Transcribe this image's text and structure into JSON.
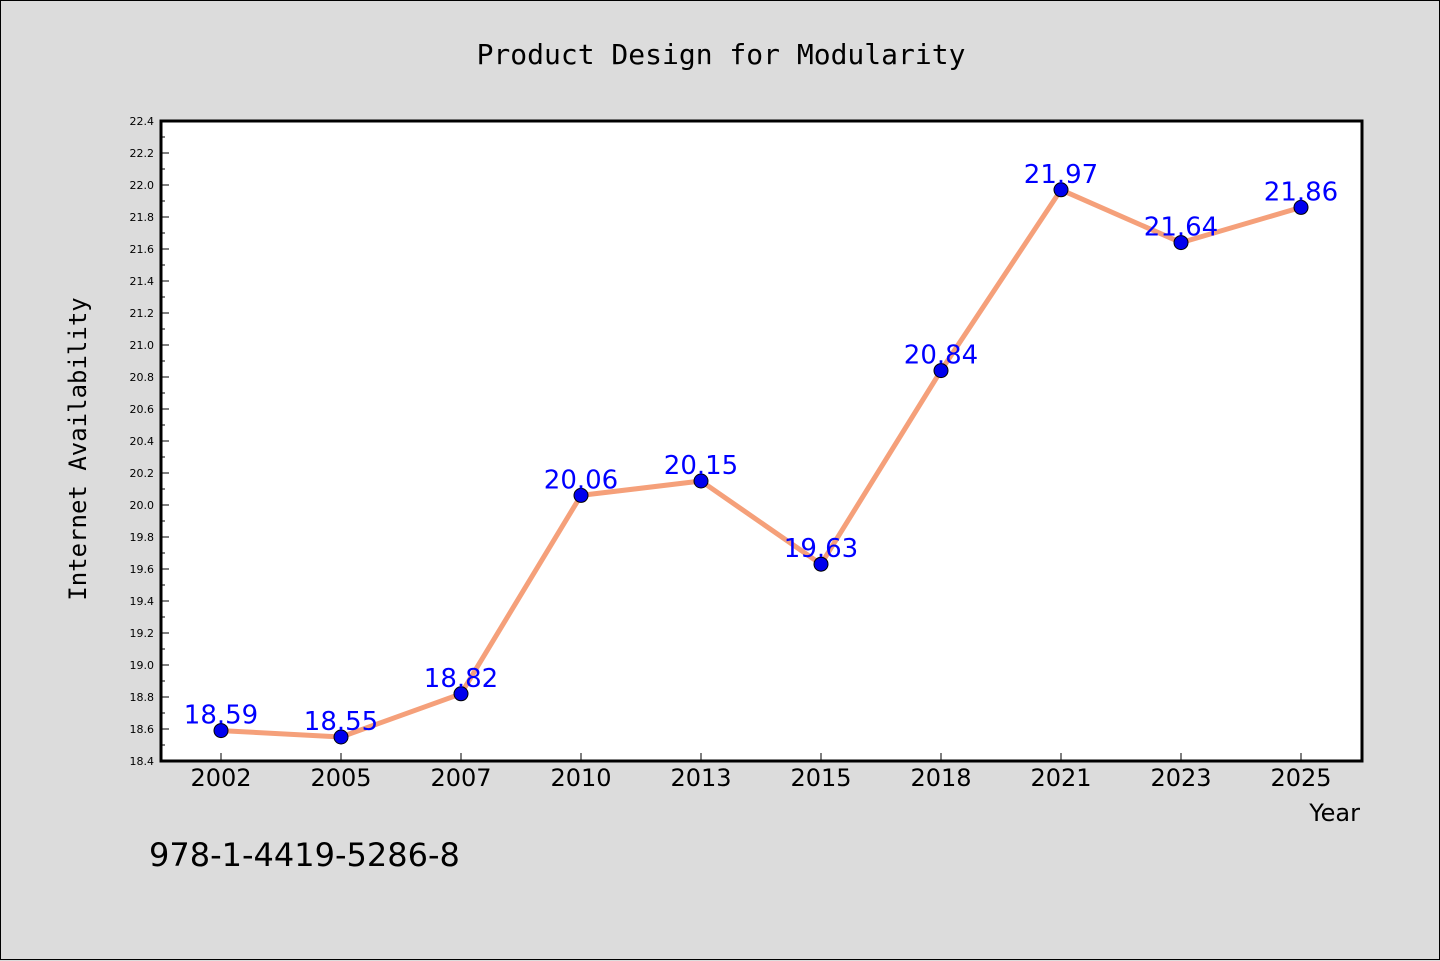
{
  "chart_data": {
    "type": "line",
    "title": "Product Design for Modularity",
    "xlabel": "Year",
    "ylabel": "Internet Availability",
    "categories": [
      "2002",
      "2005",
      "2007",
      "2010",
      "2013",
      "2015",
      "2018",
      "2021",
      "2023",
      "2025"
    ],
    "series": [
      {
        "values": [
          18.59,
          18.55,
          18.82,
          20.06,
          20.15,
          19.63,
          20.84,
          21.97,
          21.64,
          21.86
        ]
      }
    ],
    "data_labels": [
      "18.59",
      "18.55",
      "18.82",
      "20.06",
      "20.15",
      "19.63",
      "20.84",
      "21.97",
      "21.64",
      "21.86"
    ],
    "ylim": [
      18.4,
      22.4
    ],
    "yticks": [
      "18.4",
      "18.6",
      "18.8",
      "19.0",
      "19.2",
      "19.4",
      "19.6",
      "19.8",
      "20.0",
      "20.2",
      "20.4",
      "20.6",
      "20.8",
      "21.0",
      "21.2",
      "21.4",
      "21.6",
      "21.8",
      "22.0",
      "22.2",
      "22.4"
    ],
    "grid": false,
    "legend": "none",
    "colors": {
      "line": "#f5a07a",
      "marker": "#0000ee",
      "label": "#0000ff",
      "background": "#dcdcdc",
      "plot_background": "#ffffff"
    }
  },
  "annotation": {
    "text": "978-1-4419-5286-8"
  }
}
